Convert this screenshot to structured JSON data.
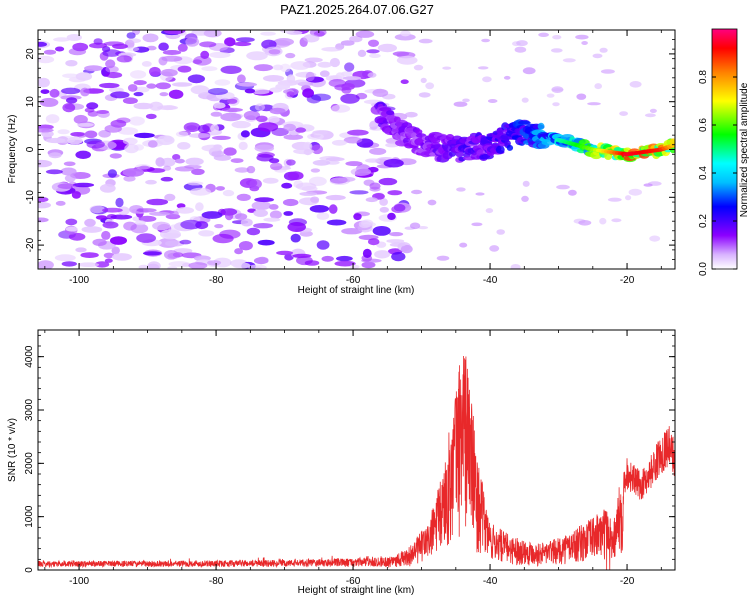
{
  "figure_title": "PAZ1.2025.264.07.06.G27",
  "chart_data": [
    {
      "type": "heatmap",
      "xlabel": "Height of straight line (km)",
      "ylabel": "Frequency (Hz)",
      "xlim": [
        -106,
        -13
      ],
      "ylim": [
        -25,
        25
      ],
      "x_ticks": [
        "-100",
        "-80",
        "-60",
        "-40",
        "-20"
      ],
      "y_ticks": [
        "-20",
        "-10",
        "0",
        "10",
        "20"
      ],
      "colorbar": {
        "label": "Normalized spectral amplitude",
        "range": [
          0,
          1
        ],
        "ticks": [
          "0.0",
          "0.2",
          "0.4",
          "0.6",
          "0.8"
        ],
        "colors": [
          "#ffffff",
          "#d9b3ff",
          "#8b00ff",
          "#0000ff",
          "#00bfff",
          "#00ffff",
          "#00ff00",
          "#ffff00",
          "#ff8000",
          "#ff0000",
          "#ff0080"
        ]
      },
      "ridge": {
        "description_points": [
          {
            "x": -56,
            "y": 7,
            "amp": 0.18
          },
          {
            "x": -50,
            "y": 1,
            "amp": 0.15
          },
          {
            "x": -45,
            "y": 0,
            "amp": 0.2
          },
          {
            "x": -40,
            "y": 1,
            "amp": 0.22
          },
          {
            "x": -35,
            "y": 4,
            "amp": 0.3
          },
          {
            "x": -30,
            "y": 2,
            "amp": 0.45
          },
          {
            "x": -25,
            "y": 0,
            "amp": 0.6
          },
          {
            "x": -20,
            "y": -1,
            "amp": 0.9
          },
          {
            "x": -15,
            "y": 0,
            "amp": 0.85
          },
          {
            "x": -13,
            "y": 1,
            "amp": 0.7
          }
        ]
      },
      "grid": false
    },
    {
      "type": "line",
      "xlabel": "Height of straight line (km)",
      "ylabel": "SNR (10 * v/v)",
      "xlim": [
        -106,
        -13
      ],
      "ylim": [
        0,
        4500
      ],
      "x_ticks": [
        "-100",
        "-80",
        "-60",
        "-40",
        "-20"
      ],
      "y_ticks": [
        "0",
        "1000",
        "2000",
        "3000",
        "4000"
      ],
      "line_color": "#e8282a",
      "envelope": [
        {
          "x": -106,
          "y": 150
        },
        {
          "x": -90,
          "y": 150
        },
        {
          "x": -70,
          "y": 170
        },
        {
          "x": -60,
          "y": 200
        },
        {
          "x": -55,
          "y": 250
        },
        {
          "x": -52,
          "y": 400
        },
        {
          "x": -49,
          "y": 900
        },
        {
          "x": -47,
          "y": 1800
        },
        {
          "x": -45.5,
          "y": 3000
        },
        {
          "x": -44,
          "y": 4400
        },
        {
          "x": -43,
          "y": 3800
        },
        {
          "x": -42,
          "y": 2200
        },
        {
          "x": -40,
          "y": 900
        },
        {
          "x": -37,
          "y": 650
        },
        {
          "x": -33,
          "y": 500
        },
        {
          "x": -30,
          "y": 600
        },
        {
          "x": -26,
          "y": 900
        },
        {
          "x": -23,
          "y": 1200
        },
        {
          "x": -22,
          "y": 900
        },
        {
          "x": -21,
          "y": 1700
        },
        {
          "x": -20,
          "y": 2100
        },
        {
          "x": -18,
          "y": 1800
        },
        {
          "x": -17,
          "y": 2000
        },
        {
          "x": -15,
          "y": 2500
        },
        {
          "x": -14,
          "y": 2700
        },
        {
          "x": -13,
          "y": 2400
        }
      ],
      "grid": false
    }
  ]
}
